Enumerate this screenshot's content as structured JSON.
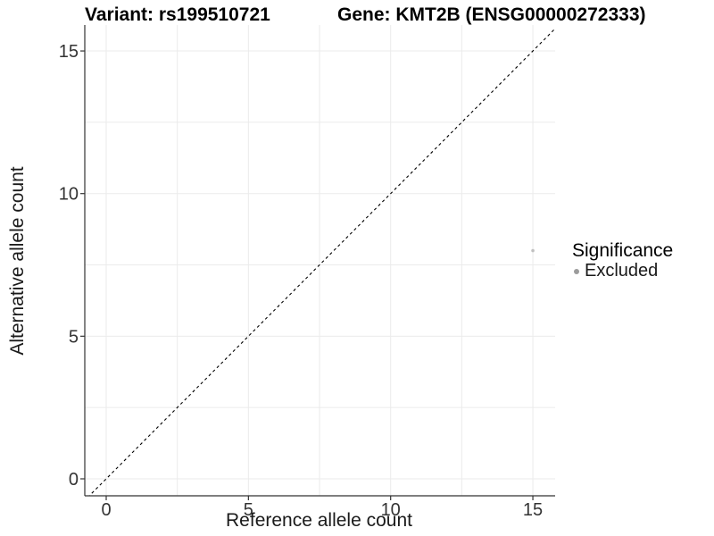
{
  "chart_data": {
    "type": "scatter",
    "titles": {
      "left": "Variant: rs199510721",
      "right": "Gene: KMT2B (ENSG00000272333)"
    },
    "xlabel": "Reference allele count",
    "ylabel": "Alternative allele count",
    "xlim": [
      -0.75,
      15.75
    ],
    "ylim": [
      -0.75,
      15.75
    ],
    "x_ticks": [
      0,
      5,
      10,
      15
    ],
    "y_ticks": [
      0,
      5,
      10,
      15
    ],
    "gridline_values": [
      0,
      2.5,
      5,
      7.5,
      10,
      12.5,
      15
    ],
    "grid": true,
    "points": [
      {
        "x": 15,
        "y": 8,
        "series": "Excluded"
      }
    ],
    "reference_line": {
      "kind": "identity y=x",
      "style": "dashed",
      "color": "#000000"
    },
    "legend": {
      "title": "Significance",
      "position": "right",
      "items": [
        {
          "label": "Excluded",
          "color": "#9c9c9c"
        }
      ]
    },
    "colors": {
      "point": "#c0c0c0",
      "grid": "#ebebeb",
      "axis": "#333333",
      "tick_label": "#333333",
      "background": "#ffffff"
    }
  }
}
